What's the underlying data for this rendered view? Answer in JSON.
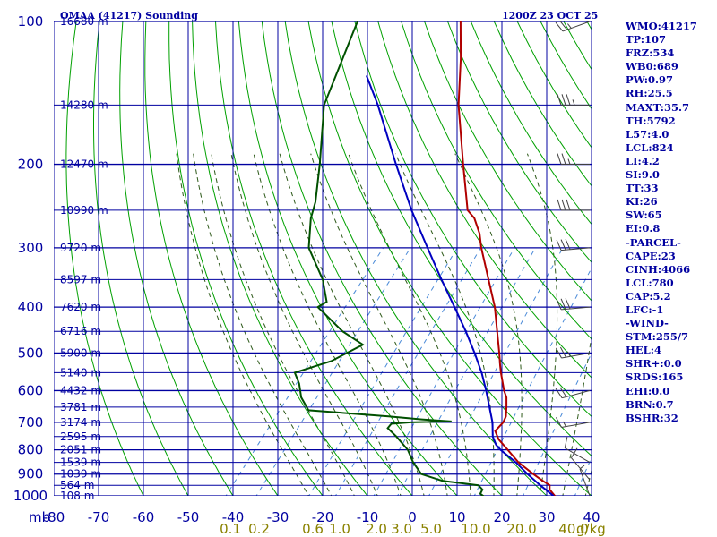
{
  "title_left": "OMAA (41217) Sounding",
  "title_right": "1200Z 23 OCT 25",
  "indices": [
    "WMO:41217",
    "TP:107",
    "FRZ:534",
    "WB0:689",
    "PW:0.97",
    "RH:25.5",
    "MAXT:35.7",
    "TH:5792",
    "L57:4.0",
    "LCL:824",
    "LI:4.2",
    "SI:9.0",
    "TT:33",
    "KI:26",
    "SW:65",
    "EI:0.8",
    "-PARCEL-",
    "CAPE:23",
    "CINH:4066",
    "LCL:780",
    "CAP:5.2",
    "LFC:-1",
    "-WIND-",
    "STM:255/7",
    "HEL:4",
    "SHR+:0.0",
    "SRDS:165",
    "EHI:0.0",
    "BRN:0.7",
    "BSHR:32"
  ],
  "colors": {
    "grid": "#0000a0",
    "temperature": "#b00000",
    "dewpoint": "#005000",
    "parcel": "#0000c0",
    "dry_adiabat": "#00a000",
    "moist_adiabat": "#2e5a1a",
    "mixing_ratio": "#4a8ad8",
    "mix_label": "#8a8200",
    "wind": "#404040"
  },
  "chart_data": {
    "type": "line",
    "y_axis": {
      "unit": "mb",
      "scale": "log",
      "reversed": true,
      "range": [
        1000,
        100
      ],
      "tick_labels": [
        "100",
        "200",
        "300",
        "400",
        "500",
        "600",
        "700",
        "800",
        "900",
        "1000"
      ]
    },
    "x_axis": {
      "unit": "C",
      "skewed": true,
      "range": [
        -80,
        40
      ],
      "tick_labels": [
        "-80",
        "-70",
        "-60",
        "-50",
        "-40",
        "-30",
        "-20",
        "-10",
        "0",
        "10",
        "20",
        "30",
        "40"
      ]
    },
    "y_axis_unit_label": "mb",
    "height_labels": [
      {
        "p": 100,
        "label": "16680 m"
      },
      {
        "p": 150,
        "label": "14280 m"
      },
      {
        "p": 200,
        "label": "12470 m"
      },
      {
        "p": 250,
        "label": "10990 m"
      },
      {
        "p": 300,
        "label": "9720 m"
      },
      {
        "p": 350,
        "label": "8597 m"
      },
      {
        "p": 400,
        "label": "7620 m"
      },
      {
        "p": 450,
        "label": "6716 m"
      },
      {
        "p": 500,
        "label": "5900 m"
      },
      {
        "p": 550,
        "label": "5140 m"
      },
      {
        "p": 600,
        "label": "4432 m"
      },
      {
        "p": 650,
        "label": "3781 m"
      },
      {
        "p": 700,
        "label": "3174 m"
      },
      {
        "p": 750,
        "label": "2595 m"
      },
      {
        "p": 800,
        "label": "2051 m"
      },
      {
        "p": 850,
        "label": "1539 m"
      },
      {
        "p": 900,
        "label": "1039 m"
      },
      {
        "p": 950,
        "label": "564 m"
      },
      {
        "p": 1000,
        "label": "108 m"
      }
    ],
    "mixing_ratio_labels": [
      "0.1",
      "0.2",
      "0.6",
      "1.0",
      "2.0",
      "3.0",
      "5.0",
      "10.0",
      "20.0",
      "40.0"
    ],
    "mixing_ratio_unit": "g/kg",
    "series": [
      {
        "key": "temperature",
        "points": [
          [
            1009,
            32
          ],
          [
            1000,
            31.8
          ],
          [
            970,
            29.5
          ],
          [
            950,
            28.7
          ],
          [
            925,
            25.8
          ],
          [
            900,
            23.0
          ],
          [
            850,
            17.5
          ],
          [
            800,
            12.8
          ],
          [
            760,
            8.8
          ],
          [
            730,
            6.5
          ],
          [
            715,
            6.6
          ],
          [
            700,
            6.7
          ],
          [
            680,
            6.2
          ],
          [
            650,
            4.6
          ],
          [
            620,
            2.8
          ],
          [
            600,
            1.0
          ],
          [
            550,
            -3.0
          ],
          [
            530,
            -4.6
          ],
          [
            500,
            -7.0
          ],
          [
            450,
            -11.5
          ],
          [
            400,
            -16.5
          ],
          [
            350,
            -23.0
          ],
          [
            300,
            -30.5
          ],
          [
            280,
            -33.5
          ],
          [
            260,
            -37.5
          ],
          [
            250,
            -40.5
          ],
          [
            200,
            -50.0
          ],
          [
            150,
            -62.0
          ],
          [
            120,
            -70.0
          ],
          [
            100,
            -77.0
          ]
        ]
      },
      {
        "key": "dewpoint",
        "points": [
          [
            1009,
            15.5
          ],
          [
            1000,
            15.8
          ],
          [
            990,
            14.8
          ],
          [
            970,
            14.5
          ],
          [
            950,
            12.8
          ],
          [
            930,
            4.0
          ],
          [
            900,
            -2.0
          ],
          [
            850,
            -6.0
          ],
          [
            800,
            -9.5
          ],
          [
            750,
            -14.5
          ],
          [
            720,
            -18.0
          ],
          [
            705,
            -18.0
          ],
          [
            700,
            -14.0
          ],
          [
            697,
            -5.0
          ],
          [
            690,
            -12.0
          ],
          [
            680,
            -20.0
          ],
          [
            660,
            -39.0
          ],
          [
            620,
            -43.0
          ],
          [
            580,
            -46.0
          ],
          [
            550,
            -49.0
          ],
          [
            520,
            -43.0
          ],
          [
            480,
            -39.0
          ],
          [
            450,
            -46.0
          ],
          [
            400,
            -56.0
          ],
          [
            390,
            -55.0
          ],
          [
            350,
            -60.0
          ],
          [
            300,
            -69.0
          ],
          [
            260,
            -74.0
          ],
          [
            240,
            -76.0
          ],
          [
            200,
            -82.0
          ],
          [
            150,
            -92.0
          ],
          [
            100,
            -100.0
          ]
        ]
      },
      {
        "key": "parcel",
        "points": [
          [
            1009,
            32.0
          ],
          [
            1000,
            31.5
          ],
          [
            950,
            26.6
          ],
          [
            900,
            21.7
          ],
          [
            850,
            16.9
          ],
          [
            800,
            11.2
          ],
          [
            780,
            9.2
          ],
          [
            750,
            7.0
          ],
          [
            700,
            4.3
          ],
          [
            650,
            0.8
          ],
          [
            600,
            -3.0
          ],
          [
            550,
            -7.3
          ],
          [
            500,
            -12.5
          ],
          [
            450,
            -18.5
          ],
          [
            400,
            -25.5
          ],
          [
            350,
            -33.5
          ],
          [
            300,
            -42.5
          ],
          [
            250,
            -53.0
          ],
          [
            200,
            -65.0
          ],
          [
            150,
            -80.0
          ],
          [
            130,
            -88.0
          ]
        ]
      }
    ],
    "winds": [
      {
        "p": 1000,
        "dir": 340,
        "spd": 5
      },
      {
        "p": 925,
        "dir": 320,
        "spd": 10
      },
      {
        "p": 850,
        "dir": 300,
        "spd": 10
      },
      {
        "p": 700,
        "dir": 260,
        "spd": 15
      },
      {
        "p": 600,
        "dir": 255,
        "spd": 20
      },
      {
        "p": 500,
        "dir": 260,
        "spd": 25
      },
      {
        "p": 400,
        "dir": 265,
        "spd": 30
      },
      {
        "p": 300,
        "dir": 265,
        "spd": 30
      },
      {
        "p": 250,
        "dir": 270,
        "spd": 30
      },
      {
        "p": 200,
        "dir": 270,
        "spd": 25
      },
      {
        "p": 150,
        "dir": 270,
        "spd": 35
      },
      {
        "p": 100,
        "dir": 250,
        "spd": 25
      }
    ]
  }
}
